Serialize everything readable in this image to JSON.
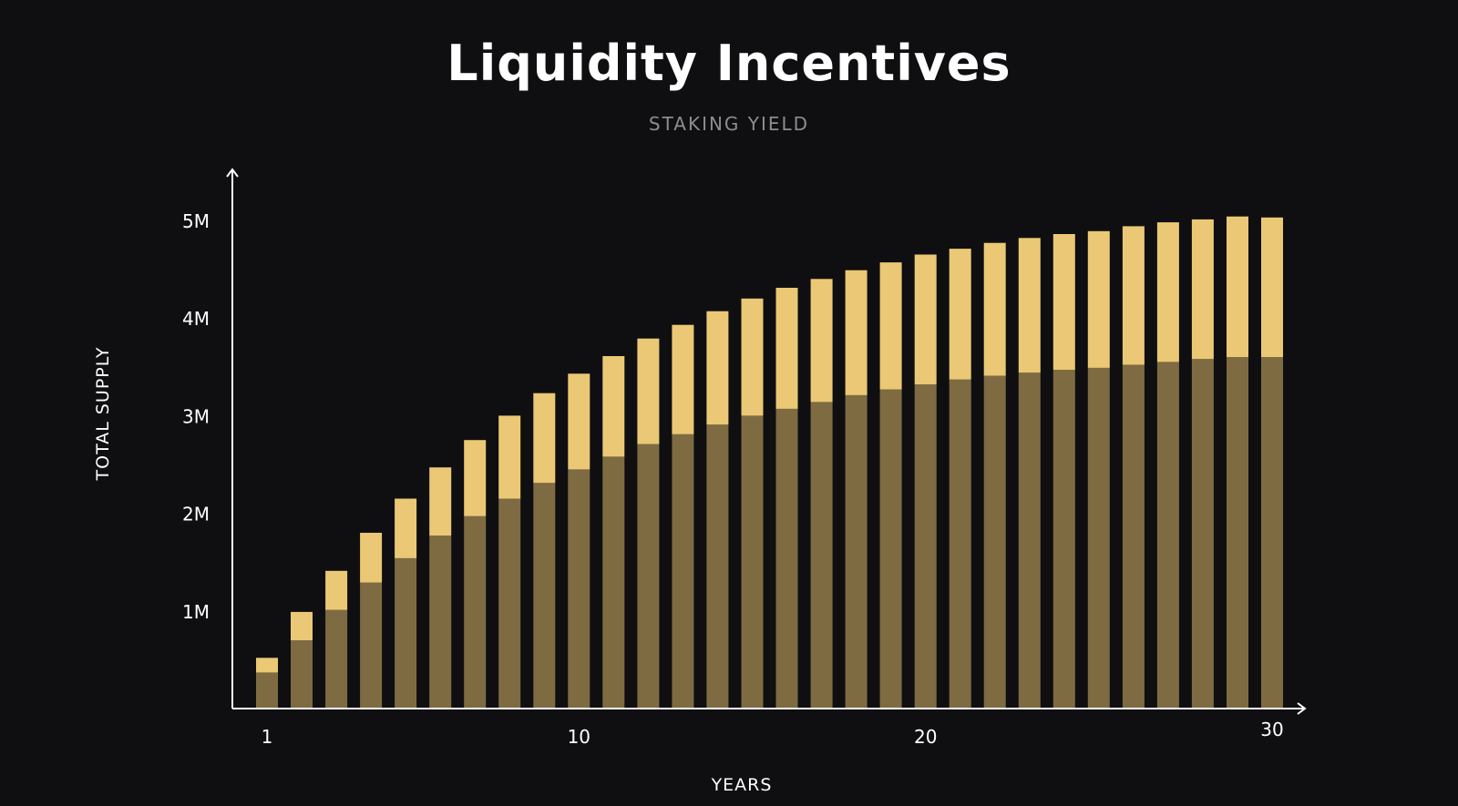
{
  "chart_data": {
    "type": "bar",
    "stacked": true,
    "title": "Liquidity Incentives",
    "subtitle": "STAKING YIELD",
    "xlabel": "YEARS",
    "ylabel": "TOTAL SUPPLY",
    "x": [
      1,
      2,
      3,
      4,
      5,
      6,
      7,
      8,
      9,
      10,
      11,
      12,
      13,
      14,
      15,
      16,
      17,
      18,
      19,
      20,
      21,
      22,
      23,
      24,
      25,
      26,
      27,
      28,
      29,
      30
    ],
    "x_ticks": [
      {
        "value": 1,
        "label": "1"
      },
      {
        "value": 10,
        "label": "10"
      },
      {
        "value": 20,
        "label": "20"
      },
      {
        "value": 30,
        "label": "30"
      }
    ],
    "y_ticks": [
      {
        "value": 1000000,
        "label": "1M"
      },
      {
        "value": 2000000,
        "label": "2M"
      },
      {
        "value": 3000000,
        "label": "3M"
      },
      {
        "value": 4000000,
        "label": "4M"
      },
      {
        "value": 5000000,
        "label": "5M"
      }
    ],
    "ylim": [
      0,
      5500000
    ],
    "grid": false,
    "colors": {
      "background": "#0f0f11",
      "lower": "#7f6b42",
      "upper": "#ebc875",
      "axis": "#ffffff"
    },
    "series": [
      {
        "color": "#7f6b42",
        "values": [
          370000,
          700000,
          1010000,
          1290000,
          1540000,
          1770000,
          1970000,
          2150000,
          2310000,
          2450000,
          2580000,
          2710000,
          2810000,
          2910000,
          3000000,
          3070000,
          3140000,
          3210000,
          3270000,
          3320000,
          3370000,
          3410000,
          3440000,
          3470000,
          3490000,
          3520000,
          3550000,
          3580000,
          3600000,
          3600000
        ]
      },
      {
        "color": "#ebc875",
        "values": [
          150000,
          290000,
          400000,
          510000,
          610000,
          700000,
          780000,
          850000,
          920000,
          980000,
          1030000,
          1080000,
          1120000,
          1160000,
          1200000,
          1240000,
          1260000,
          1280000,
          1300000,
          1330000,
          1340000,
          1360000,
          1380000,
          1390000,
          1400000,
          1420000,
          1430000,
          1430000,
          1440000,
          1430000
        ]
      }
    ]
  }
}
